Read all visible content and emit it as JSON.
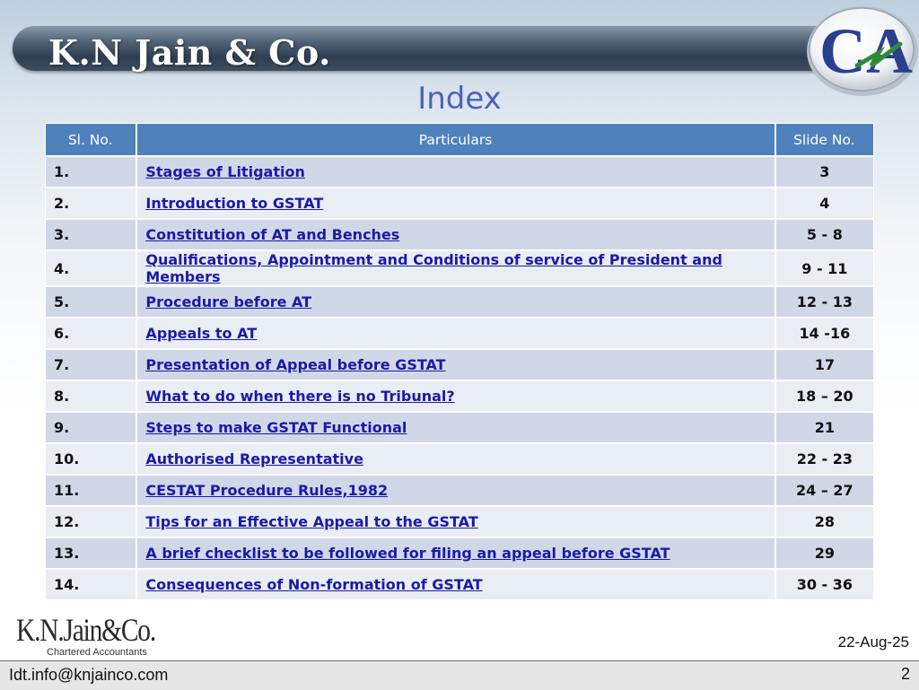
{
  "header": {
    "firm_name": "K.N Jain & Co.",
    "logo_text": "CA",
    "logo_name": "ca-logo"
  },
  "page_title": "Index",
  "table": {
    "columns": [
      "Sl. No.",
      "Particulars",
      "Slide No."
    ],
    "rows": [
      {
        "no": "1.",
        "particular": "Stages of Litigation",
        "slide": "3"
      },
      {
        "no": "2.",
        "particular": "Introduction to GSTAT",
        "slide": "4"
      },
      {
        "no": "3.",
        "particular": "Constitution of AT and Benches",
        "slide": "5 - 8"
      },
      {
        "no": "4.",
        "particular": "Qualifications, Appointment and Conditions of service of President and Members",
        "slide": "9 - 11"
      },
      {
        "no": "5.",
        "particular": "Procedure before AT",
        "slide": "12 - 13"
      },
      {
        "no": "6.",
        "particular": "Appeals to AT",
        "slide": "14 -16"
      },
      {
        "no": "7.",
        "particular": "Presentation of Appeal before GSTAT",
        "slide": "17"
      },
      {
        "no": "8.",
        "particular": "What to do when there is no Tribunal?",
        "slide": "18 – 20"
      },
      {
        "no": "9.",
        "particular": "Steps to make GSTAT Functional",
        "slide": "21"
      },
      {
        "no": "10.",
        "particular": "Authorised Representative",
        "slide": "22 - 23"
      },
      {
        "no": "11.",
        "particular": "CESTAT Procedure Rules,1982",
        "slide": "24 – 27"
      },
      {
        "no": "12.",
        "particular": "Tips for an Effective Appeal to the GSTAT",
        "slide": "28"
      },
      {
        "no": "13.",
        "particular": "A brief checklist to be followed for filing an appeal before GSTAT",
        "slide": "29"
      },
      {
        "no": "14.",
        "particular": "Consequences of Non-formation of GSTAT",
        "slide": "30 - 36"
      }
    ]
  },
  "footer": {
    "logo_brand": "K.N.Jain&Co.",
    "logo_sub": "Chartered Accountants",
    "date": "22-Aug-25",
    "email": "Idt.info@knjainco.com",
    "slide_number": "2"
  },
  "colors": {
    "header_row": "#4f81bd",
    "row_odd": "#d0d8e8",
    "row_even": "#e9edf4",
    "title": "#4e62b8",
    "link": "#1a1aa8"
  }
}
